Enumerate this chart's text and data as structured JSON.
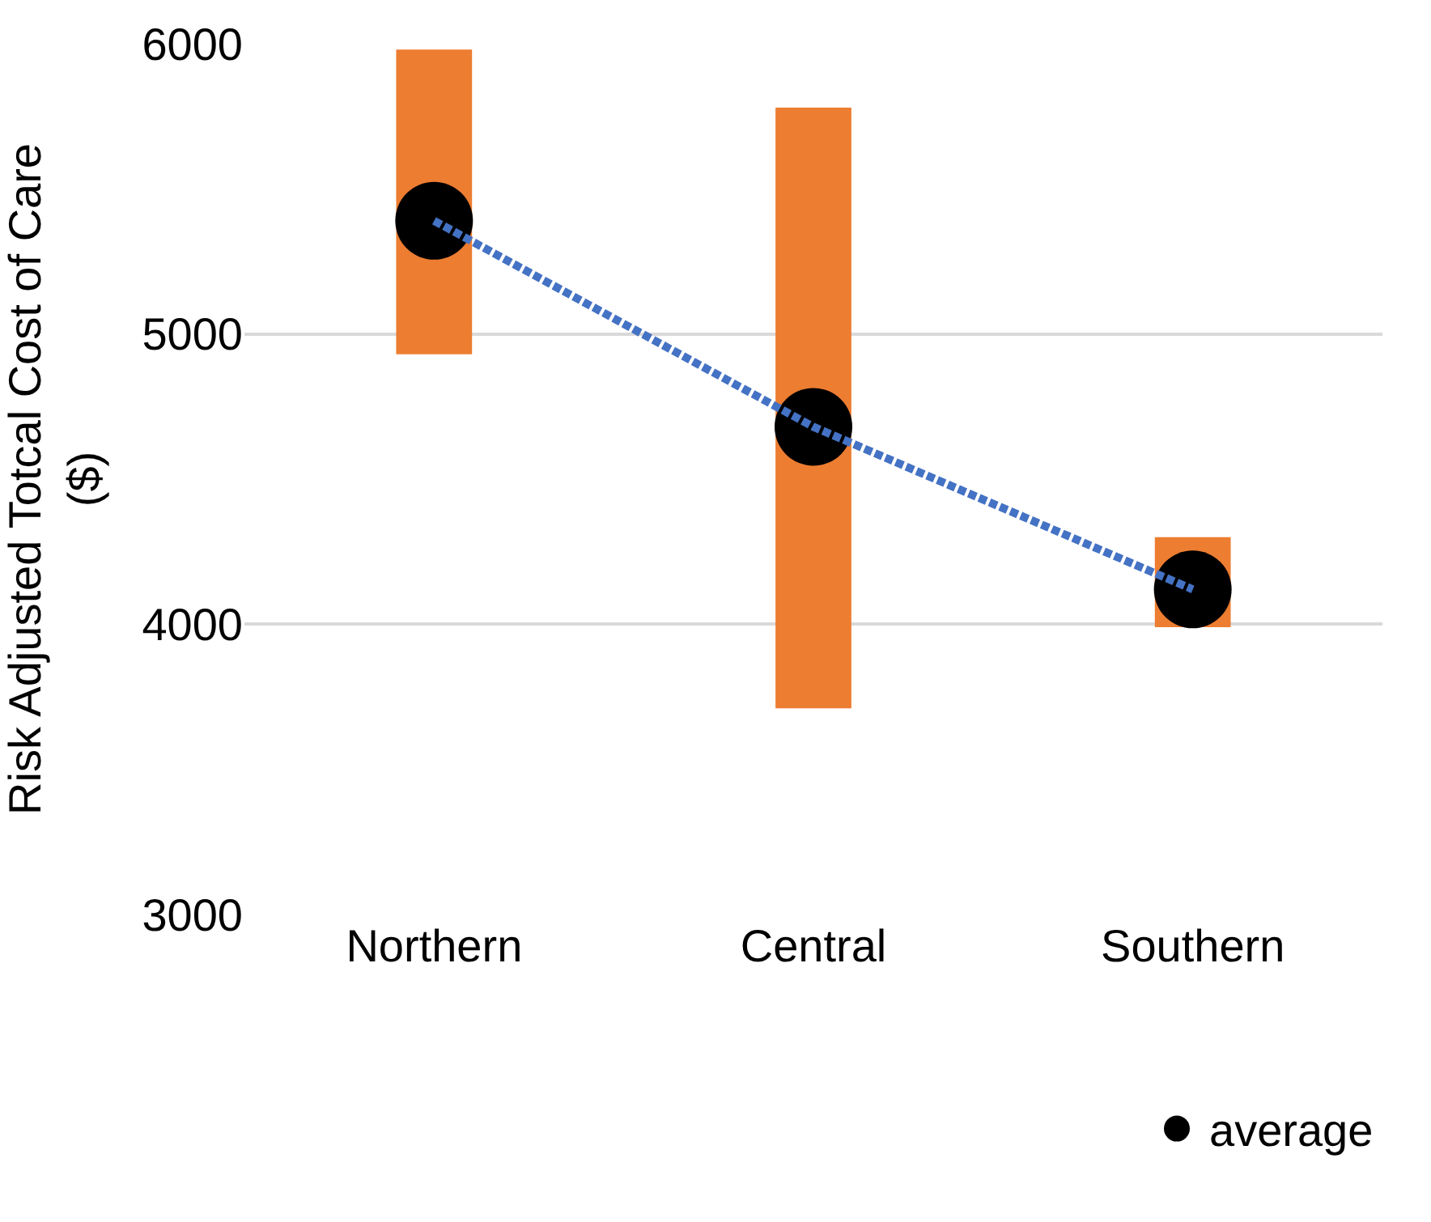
{
  "chart_data": {
    "type": "bar",
    "ylabel": "Risk Adjusted Totcal Cost of Care ($)",
    "categories": [
      "Northern",
      "Central",
      "Southern"
    ],
    "ylim": [
      3000,
      6000
    ],
    "yticks": [
      3000,
      4000,
      5000,
      6000
    ],
    "grid": "y",
    "legend": "bottom right",
    "series": [
      {
        "color": "#ed7d31",
        "values": [
          1050,
          2070,
          310
        ],
        "base": [
          4930,
          3710,
          3990
        ]
      },
      {
        "type": "scatter",
        "name": "average",
        "color": "#000000",
        "values": [
          5390,
          4680,
          4120
        ],
        "marker": "circle"
      },
      {
        "type": "line",
        "color": "#4472c4",
        "values": [
          5390,
          4680,
          4120
        ],
        "line_style": "dotted",
        "marker": "none"
      }
    ]
  }
}
